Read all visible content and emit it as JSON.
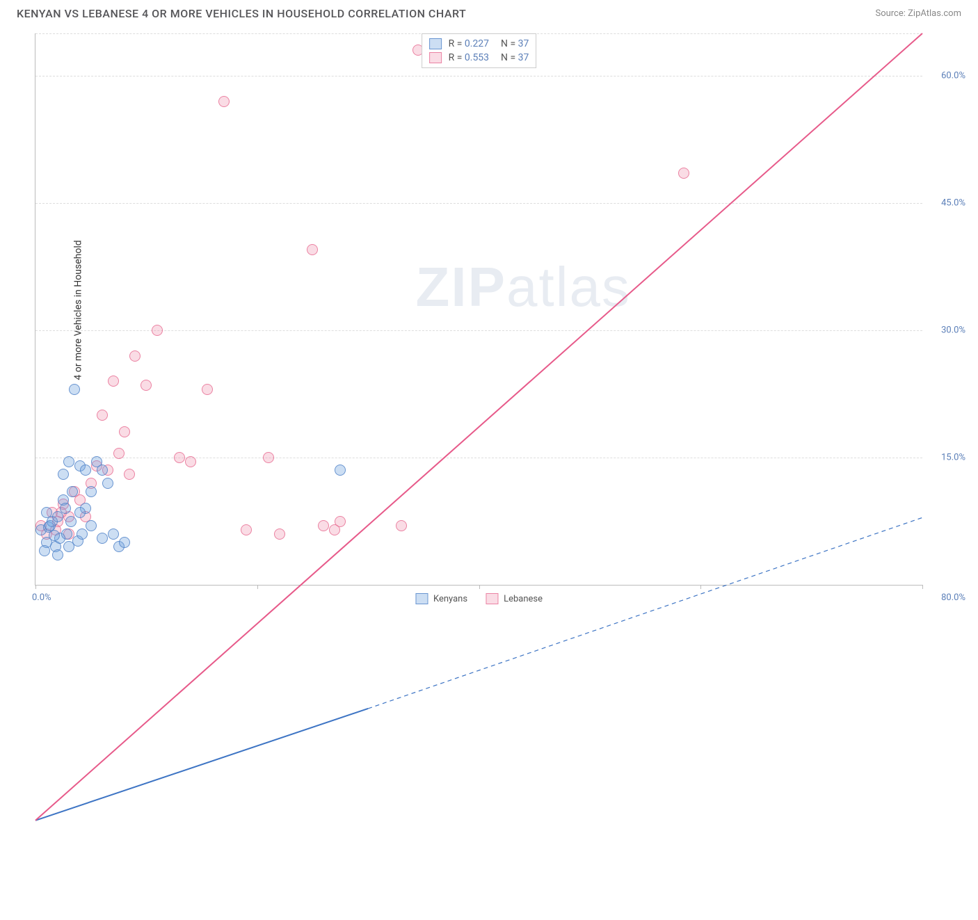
{
  "header": {
    "title": "KENYAN VS LEBANESE 4 OR MORE VEHICLES IN HOUSEHOLD CORRELATION CHART",
    "source": "Source: ZipAtlas.com"
  },
  "watermark": {
    "bold": "ZIP",
    "rest": "atlas"
  },
  "chart": {
    "type": "scatter",
    "ylabel": "4 or more Vehicles in Household",
    "xlim": [
      0,
      80
    ],
    "ylim": [
      0,
      65
    ],
    "xtick_left": "0.0%",
    "xtick_right": "80.0%",
    "ytick_labels": [
      "15.0%",
      "30.0%",
      "45.0%",
      "60.0%"
    ],
    "ytick_values": [
      15,
      30,
      45,
      60
    ],
    "xtick_positions": [
      0,
      20,
      40,
      60,
      80
    ],
    "grid_color": "#dddddd",
    "axis_color": "#bbbbbb",
    "background_color": "#ffffff",
    "label_color": "#5b7fb8",
    "marker_size": 16,
    "series": {
      "blue": {
        "label": "Kenyans",
        "fill": "rgba(110,160,220,0.35)",
        "stroke": "rgba(80,130,200,0.8)",
        "r": "0.227",
        "n": "37",
        "trend": {
          "x1": 0,
          "y1": 7.3,
          "x2": 30,
          "y2": 15.5,
          "dash_x2": 80,
          "dash_y2": 29.5,
          "color": "#3d74c4",
          "width": 2
        },
        "points": [
          [
            0.5,
            6.5
          ],
          [
            1.0,
            5.0
          ],
          [
            1.2,
            6.8
          ],
          [
            1.5,
            7.5
          ],
          [
            1.8,
            4.5
          ],
          [
            2.0,
            8.0
          ],
          [
            2.2,
            5.5
          ],
          [
            2.5,
            10.0
          ],
          [
            2.8,
            6.0
          ],
          [
            3.0,
            14.5
          ],
          [
            3.2,
            7.5
          ],
          [
            3.5,
            23.0
          ],
          [
            4.0,
            14.0
          ],
          [
            3.0,
            4.5
          ],
          [
            4.5,
            9.0
          ],
          [
            5.0,
            11.0
          ],
          [
            5.5,
            14.5
          ],
          [
            6.0,
            5.5
          ],
          [
            6.5,
            12.0
          ],
          [
            7.0,
            6.0
          ],
          [
            7.5,
            4.5
          ],
          [
            8.0,
            5.0
          ],
          [
            2.0,
            3.5
          ],
          [
            1.0,
            8.5
          ],
          [
            2.5,
            13.0
          ],
          [
            4.0,
            8.5
          ],
          [
            0.8,
            4.0
          ],
          [
            27.5,
            13.5
          ],
          [
            4.5,
            13.5
          ],
          [
            3.8,
            5.2
          ],
          [
            1.3,
            7.0
          ],
          [
            2.7,
            9.0
          ],
          [
            5.0,
            7.0
          ],
          [
            3.3,
            11.0
          ],
          [
            1.7,
            5.8
          ],
          [
            6.0,
            13.5
          ],
          [
            4.2,
            6.0
          ]
        ]
      },
      "pink": {
        "label": "Lebanese",
        "fill": "rgba(240,140,170,0.30)",
        "stroke": "rgba(230,100,140,0.75)",
        "r": "0.553",
        "n": "37",
        "trend": {
          "x1": 0,
          "y1": 7.3,
          "x2": 80,
          "y2": 65.0,
          "color": "#e75a8a",
          "width": 2
        },
        "points": [
          [
            0.5,
            7.0
          ],
          [
            1.0,
            6.0
          ],
          [
            1.5,
            8.5
          ],
          [
            2.0,
            7.5
          ],
          [
            2.5,
            9.5
          ],
          [
            3.0,
            8.0
          ],
          [
            3.5,
            11.0
          ],
          [
            4.0,
            10.0
          ],
          [
            5.0,
            12.0
          ],
          [
            5.5,
            14.0
          ],
          [
            6.0,
            20.0
          ],
          [
            6.5,
            13.5
          ],
          [
            7.0,
            24.0
          ],
          [
            8.0,
            18.0
          ],
          [
            8.5,
            13.0
          ],
          [
            9.0,
            27.0
          ],
          [
            10.0,
            23.5
          ],
          [
            11.0,
            30.0
          ],
          [
            13.0,
            15.0
          ],
          [
            14.0,
            14.5
          ],
          [
            15.5,
            23.0
          ],
          [
            17.0,
            57.0
          ],
          [
            19.0,
            6.5
          ],
          [
            21.0,
            15.0
          ],
          [
            22.0,
            6.0
          ],
          [
            25.0,
            39.5
          ],
          [
            26.0,
            7.0
          ],
          [
            27.0,
            6.5
          ],
          [
            27.5,
            7.5
          ],
          [
            33.0,
            7.0
          ],
          [
            34.5,
            63.0
          ],
          [
            58.5,
            48.5
          ],
          [
            3.0,
            6.0
          ],
          [
            1.8,
            6.5
          ],
          [
            4.5,
            8.0
          ],
          [
            2.3,
            8.5
          ],
          [
            7.5,
            15.5
          ]
        ]
      }
    },
    "legend_top": {
      "r_label": "R =",
      "n_label": "N ="
    },
    "legend_bottom": {
      "series": [
        "blue",
        "pink"
      ]
    }
  }
}
